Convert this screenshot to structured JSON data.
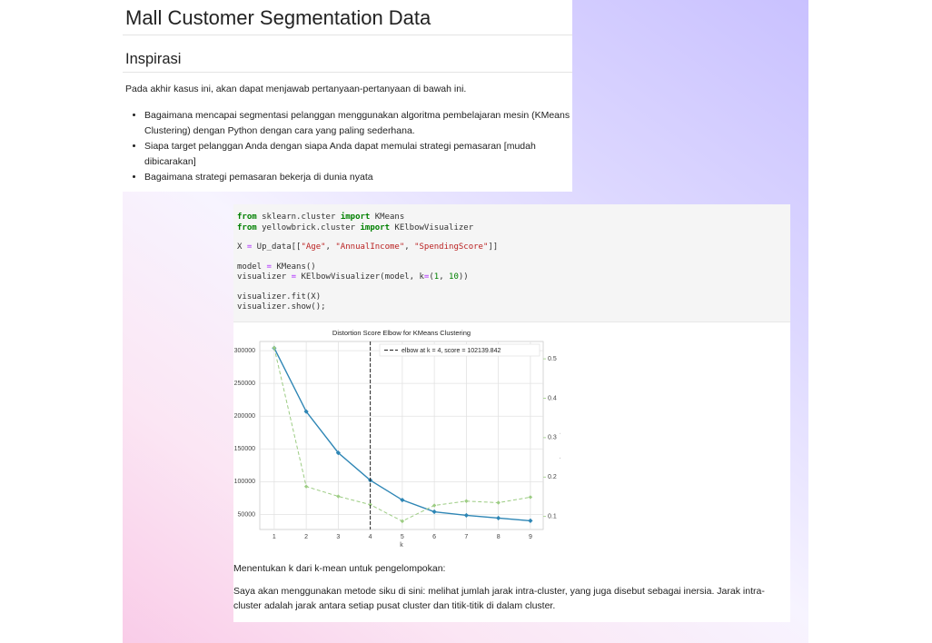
{
  "header": {
    "title": "Mall Customer Segmentation Data"
  },
  "section": {
    "heading": "Inspirasi",
    "intro": "Pada akhir kasus ini, akan dapat menjawab pertanyaan-pertanyaan di bawah ini.",
    "bullets": [
      "Bagaimana mencapai segmentasi pelanggan menggunakan algoritma pembelajaran mesin (KMeans Clustering) dengan Python dengan cara yang paling sederhana.",
      "Siapa target pelanggan Anda dengan siapa Anda dapat memulai strategi pemasaran [mudah dibicarakan]",
      "Bagaimana strategi pemasaran bekerja di dunia nyata"
    ]
  },
  "code": {
    "groups": [
      [
        [
          {
            "text": "from",
            "color": "#008000",
            "bold": true
          },
          {
            "text": " sklearn.cluster ",
            "color": "#333333"
          },
          {
            "text": "import",
            "color": "#008000",
            "bold": true
          },
          {
            "text": " KMeans",
            "color": "#333333"
          }
        ],
        [
          {
            "text": "from",
            "color": "#008000",
            "bold": true
          },
          {
            "text": " yellowbrick.cluster ",
            "color": "#333333"
          },
          {
            "text": "import",
            "color": "#008000",
            "bold": true
          },
          {
            "text": " KElbowVisualizer",
            "color": "#333333"
          }
        ]
      ],
      [
        [
          {
            "text": "X ",
            "color": "#333333"
          },
          {
            "text": "=",
            "color": "#aa22ff"
          },
          {
            "text": " Up_data[[",
            "color": "#333333"
          },
          {
            "text": "\"Age\"",
            "color": "#ba2121"
          },
          {
            "text": ", ",
            "color": "#333333"
          },
          {
            "text": "\"AnnualIncome\"",
            "color": "#ba2121"
          },
          {
            "text": ", ",
            "color": "#333333"
          },
          {
            "text": "\"SpendingScore\"",
            "color": "#ba2121"
          },
          {
            "text": "]]",
            "color": "#333333"
          }
        ]
      ],
      [
        [
          {
            "text": "model ",
            "color": "#333333"
          },
          {
            "text": "=",
            "color": "#aa22ff"
          },
          {
            "text": " KMeans()",
            "color": "#333333"
          }
        ],
        [
          {
            "text": "visualizer ",
            "color": "#333333"
          },
          {
            "text": "=",
            "color": "#aa22ff"
          },
          {
            "text": " KElbowVisualizer(model, k",
            "color": "#333333"
          },
          {
            "text": "=",
            "color": "#aa22ff"
          },
          {
            "text": "(",
            "color": "#333333"
          },
          {
            "text": "1",
            "color": "#008000"
          },
          {
            "text": ", ",
            "color": "#333333"
          },
          {
            "text": "10",
            "color": "#008000"
          },
          {
            "text": "))",
            "color": "#333333"
          }
        ]
      ],
      [
        [
          {
            "text": "visualizer.fit(X)",
            "color": "#333333"
          }
        ],
        [
          {
            "text": "visualizer.show();",
            "color": "#333333"
          }
        ]
      ]
    ]
  },
  "chart_data": {
    "type": "line",
    "title": "Distortion Score Elbow for KMeans Clustering",
    "x_label": "k",
    "y2_label": "fit time (seconds)",
    "x": [
      1,
      2,
      3,
      4,
      5,
      6,
      7,
      8,
      9
    ],
    "series": [
      {
        "color": "#2e86b5",
        "values": [
          304000,
          207000,
          144000,
          102140,
          72000,
          54000,
          48600,
          44400,
          40300
        ]
      },
      {
        "color": "#9ccc83",
        "axis": "y2",
        "dashed": true,
        "values": [
          0.528,
          0.176,
          0.151,
          0.13,
          0.088,
          0.128,
          0.139,
          0.135,
          0.149
        ]
      }
    ],
    "elbow": {
      "x": 4,
      "label": "elbow at k = 4, score = 102139.842",
      "color": "#222222"
    },
    "xlim": [
      0.55,
      9.4
    ],
    "xticks": [
      1,
      2,
      3,
      4,
      5,
      6,
      7,
      8,
      9
    ],
    "ylim": [
      27000,
      314000
    ],
    "yticks": [
      50000,
      100000,
      150000,
      200000,
      250000,
      300000
    ],
    "y2lim": [
      0.067,
      0.544
    ],
    "y2ticks": [
      0.1,
      0.2,
      0.3,
      0.4,
      0.5
    ],
    "y2_color": "#9ccc83",
    "grid": true,
    "legend": "upper right"
  },
  "text": {
    "paragraphs": [
      "Menentukan k dari k-mean untuk pengelompokan:",
      "Saya akan menggunakan metode siku di sini: melihat jumlah jarak intra-cluster, yang juga disebut sebagai inersia. Jarak intra-cluster adalah jarak antara setiap pusat cluster dan titik-titik di dalam cluster."
    ]
  }
}
